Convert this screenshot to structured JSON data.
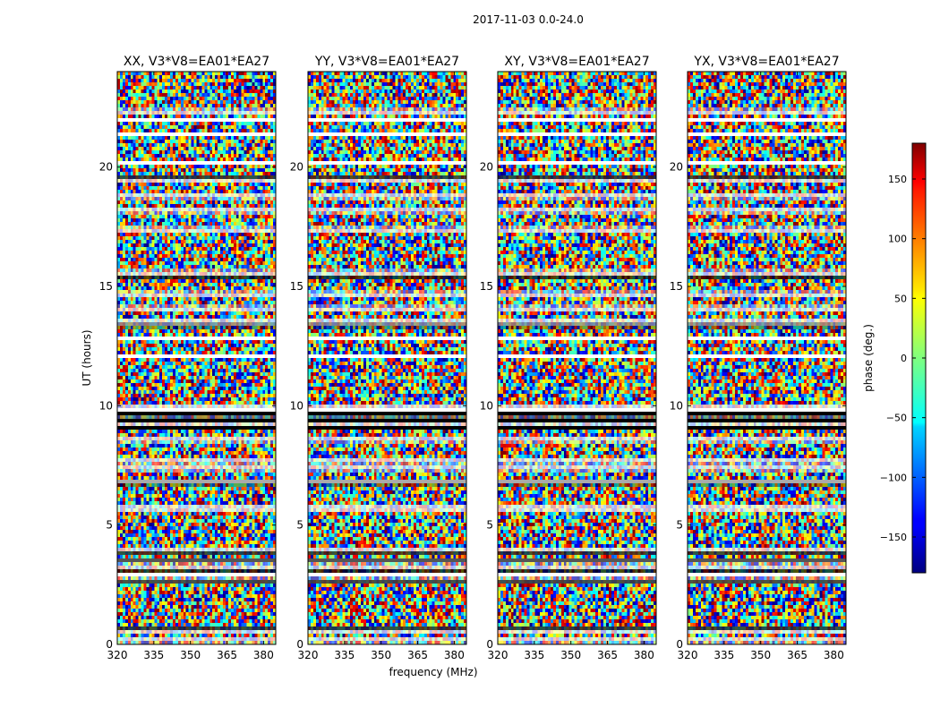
{
  "figure": {
    "suptitle": "2017-11-03 0.0-24.0"
  },
  "chart_data": {
    "type": "heatmap",
    "suptitle": "2017-11-03 0.0-24.0",
    "xlabel": "frequency (MHz)",
    "ylabel": "UT (hours)",
    "xlim": [
      320,
      385
    ],
    "ylim": [
      0,
      24
    ],
    "xticks": [
      320,
      335,
      350,
      365,
      380
    ],
    "yticks": [
      0,
      5,
      10,
      15,
      20
    ],
    "grid": false,
    "panels": [
      {
        "title": "XX, V3*V8=EA01*EA27"
      },
      {
        "title": "YY, V3*V8=EA01*EA27"
      },
      {
        "title": "XY, V3*V8=EA01*EA27"
      },
      {
        "title": "YX, V3*V8=EA01*EA27"
      }
    ],
    "colorbar": {
      "label": "phase (deg.)",
      "colormap": "jet",
      "range": [
        -180,
        180
      ],
      "ticks": [
        -150,
        -100,
        -50,
        0,
        50,
        100,
        150
      ],
      "tick_labels": [
        "−150",
        "−100",
        "−50",
        "0",
        "50",
        "100",
        "150"
      ]
    },
    "flagged_intervals_hours": [
      [
        0.1,
        0.25
      ],
      [
        0.5,
        0.65
      ],
      [
        2.6,
        2.75
      ],
      [
        2.85,
        3.0
      ],
      [
        3.2,
        3.35
      ],
      [
        3.45,
        3.6
      ],
      [
        3.85,
        4.0
      ],
      [
        5.6,
        5.8
      ],
      [
        6.75,
        6.9
      ],
      [
        7.3,
        7.45
      ],
      [
        7.6,
        7.75
      ],
      [
        8.5,
        8.65
      ],
      [
        9.2,
        9.5
      ],
      [
        9.7,
        10.0
      ],
      [
        12.0,
        12.15
      ],
      [
        12.75,
        12.9
      ],
      [
        13.4,
        13.6
      ],
      [
        14.0,
        14.15
      ],
      [
        14.6,
        14.75
      ],
      [
        15.5,
        15.65
      ],
      [
        17.3,
        17.45
      ],
      [
        18.1,
        18.25
      ],
      [
        18.7,
        18.85
      ],
      [
        19.4,
        19.55
      ],
      [
        20.1,
        20.25
      ],
      [
        21.3,
        21.45
      ],
      [
        21.9,
        22.05
      ],
      [
        22.25,
        22.4
      ]
    ],
    "dark_intervals_hours": [
      [
        0.6,
        0.7
      ],
      [
        2.55,
        2.65
      ],
      [
        3.0,
        3.1
      ],
      [
        3.5,
        3.6
      ],
      [
        3.8,
        3.9
      ],
      [
        6.7,
        6.8
      ],
      [
        9.0,
        9.15
      ],
      [
        9.55,
        9.75
      ],
      [
        9.3,
        9.45
      ],
      [
        13.3,
        13.4
      ],
      [
        15.3,
        15.4
      ],
      [
        19.5,
        19.6
      ]
    ],
    "noise_description": "random phase noise across all channels and times"
  }
}
